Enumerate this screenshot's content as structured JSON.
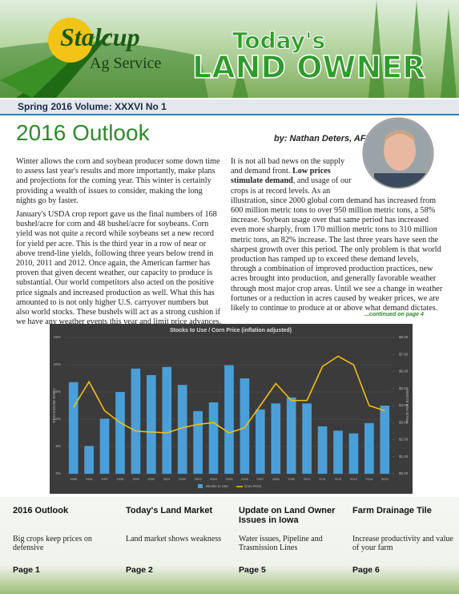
{
  "header": {
    "logo_name": "Stalcup",
    "logo_sub": "Ag Service",
    "title_top": "Today's",
    "title_main": "LAND OWNER"
  },
  "issue": "Spring 2016 Volume: XXXVI No 1",
  "article": {
    "title": "2016 Outlook",
    "byline": "by: Nathan Deters, AFM",
    "left_column": [
      "Winter allows the corn and soybean producer some down time to assess last year's results and more importantly, make plans and projections for the coming year.  This winter is certainly providing a wealth of issues to consider, making the long nights go by faster.",
      "January's USDA crop report gave us the final numbers of 168 bushel/acre for corn and 48 bushel/acre for soybeans.  Corn yield was not quite a record while soybeans set a new record for yield per acre.  This is the third year in a row of near or above trend-line yields, following three years below trend in 2010, 2011 and 2012.  Once again, the American farmer has proven that given decent weather, our capacity to produce is substantial.  Our world competitors also acted on the positive price signals and increased production as well.  What this has amounted to is not only higher U.S. carryover numbers but also world stocks.  These bushels will act as a strong cushion if we have any weather events this year and limit price advances."
    ],
    "right_column": {
      "text_before": "It is not all bad news on the supply and demand front. ",
      "bold": "Low prices stimulate demand",
      "text_after": ", and usage of our crops is at record levels.  As an illustration, since 2000 global corn demand has increased from 600 million metric tons to over 950 million metric tons, a 58% increase.  Soybean usage over that same period has increased even more sharply, from 170 million metric tons to 310 million metric tons, an 82% increase.  The last three years have seen the sharpest growth over this period.  The only problem is that world production has ramped up to exceed these demand levels, through a combination of improved production practices, new acres brought into production, and generally favorable weather through most major crop areas.  Until we see a change in weather fortunes or a reduction in acres caused by weaker prices, we are likely to continue to produce at or above what demand dictates."
    },
    "continued": "...continued on page 4"
  },
  "chart_data": {
    "type": "bar_line",
    "title": "Stocks to Use / Corn Price (inflation adjusted)",
    "categories": [
      "1995",
      "1996",
      "1997",
      "1998",
      "1999",
      "2000",
      "2001",
      "2002",
      "2003",
      "2004",
      "2005",
      "2006",
      "2007",
      "2008",
      "2009",
      "2010",
      "2011",
      "2012",
      "2013",
      "2014",
      "2015"
    ],
    "series": [
      {
        "name": "Stocks to Use",
        "color": "#4a9fd8",
        "axis": "y",
        "values": [
          16.8,
          5.1,
          10.1,
          15.0,
          19.3,
          18.1,
          19.6,
          16.3,
          11.5,
          13.1,
          19.9,
          17.5,
          11.8,
          12.9,
          14.0,
          12.9,
          8.7,
          7.9,
          7.4,
          9.3,
          12.5
        ]
      },
      {
        "name": "Corn Price",
        "color": "#f0c010",
        "axis": "y2",
        "values": [
          3.9,
          5.4,
          3.7,
          3.0,
          2.5,
          2.45,
          2.4,
          2.7,
          2.9,
          3.0,
          2.4,
          2.7,
          4.0,
          5.3,
          4.3,
          4.3,
          6.3,
          6.9,
          6.4,
          4.0,
          3.7
        ]
      }
    ],
    "ylabel": "STOCKS/USE RATIO",
    "y2label": "PRICE PER BUSHEL",
    "ylim": [
      0,
      25
    ],
    "yticks": [
      {
        "value": 0,
        "label": "0%"
      },
      {
        "value": 5,
        "label": "5%"
      },
      {
        "value": 10,
        "label": "10%"
      },
      {
        "value": 15,
        "label": "15%"
      },
      {
        "value": 20,
        "label": "20%"
      },
      {
        "value": 25,
        "label": "25%"
      }
    ],
    "y2lim": [
      0,
      8
    ],
    "y2ticks": [
      {
        "value": 0,
        "label": "$0.00"
      },
      {
        "value": 1,
        "label": "$1.00"
      },
      {
        "value": 2,
        "label": "$2.00"
      },
      {
        "value": 3,
        "label": "$3.00"
      },
      {
        "value": 4,
        "label": "$4.00"
      },
      {
        "value": 5,
        "label": "$5.00"
      },
      {
        "value": 6,
        "label": "$6.00"
      },
      {
        "value": 7,
        "label": "$7.00"
      },
      {
        "value": 8,
        "label": "$8.00"
      }
    ],
    "grid": true,
    "legend": "bottom"
  },
  "footer": [
    {
      "title": "2016 Outlook",
      "desc": "Big crops keep prices on defensive",
      "page": "Page 1"
    },
    {
      "title": "Today's Land Market",
      "desc": "Land market shows weakness",
      "page": "Page 2"
    },
    {
      "title": "Update on Land Owner Issues in Iowa",
      "desc": "Water issues, Pipeline and Trasmission Lines",
      "page": "Page 5"
    },
    {
      "title": "Farm Drainage Tile",
      "desc": "Increase productivity and value of your farm",
      "page": "Page 6"
    }
  ]
}
